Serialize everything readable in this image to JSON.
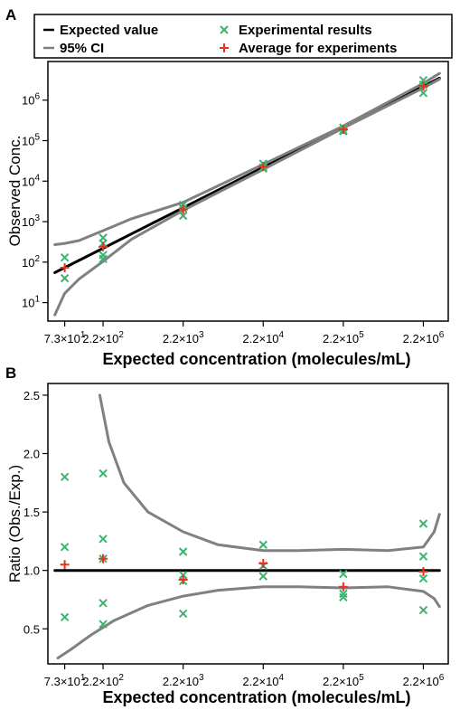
{
  "chart_data": [
    {
      "panel": "A",
      "type": "scatter",
      "xlabel": "Expected concentration (molecules/mL)",
      "ylabel": "Observed Conc.",
      "x_scale": "log",
      "y_scale": "log",
      "x_tick_labels": [
        "7.3×10^1",
        "2.2×10^2",
        "2.2×10^3",
        "2.2×10^4",
        "2.2×10^5",
        "2.2×10^6"
      ],
      "x_ticks": [
        73,
        220,
        2200,
        22000,
        220000,
        2200000
      ],
      "y_tick_labels": [
        "10^1",
        "10^2",
        "10^3",
        "10^4",
        "10^5",
        "10^6"
      ],
      "y_ticks": [
        10,
        100,
        1000,
        10000,
        100000,
        1000000
      ],
      "xlim": [
        45,
        4500000
      ],
      "ylim": [
        3.5,
        9000000
      ],
      "grid": false,
      "legend_position": "top",
      "legend": [
        {
          "label": "Expected value",
          "marker": "line",
          "color": "#000000"
        },
        {
          "label": "95% CI",
          "marker": "line",
          "color": "#808080"
        },
        {
          "label": "Experimental results",
          "marker": "x",
          "color": "#3cb371"
        },
        {
          "label": "Average for experiments",
          "marker": "+",
          "color": "#e8321e"
        }
      ],
      "series": [
        {
          "name": "Expected value",
          "style": "line",
          "x": [
            55,
            3500000
          ],
          "y": [
            55,
            3500000
          ]
        },
        {
          "name": "95% CI",
          "style": "line",
          "x": [
            55,
            73,
            110,
            220,
            500,
            2200,
            22000,
            220000,
            2200000,
            3500000
          ],
          "y": [
            270,
            290,
            340,
            600,
            1180,
            3000,
            26000,
            230000,
            2600000,
            4600000
          ]
        },
        {
          "name": "95% CI",
          "style": "line",
          "x": [
            55,
            73,
            110,
            220,
            500,
            2200,
            22000,
            220000,
            2200000,
            3500000
          ],
          "y": [
            5,
            17,
            38,
            105,
            370,
            1900,
            19500,
            205000,
            2000000,
            3300000
          ]
        },
        {
          "name": "Experimental results",
          "style": "x",
          "x": [
            73,
            73,
            220,
            220,
            220,
            220,
            2200,
            2200,
            2200,
            22000,
            22000,
            22000,
            220000,
            220000,
            220000,
            2200000,
            2200000,
            2200000
          ],
          "y": [
            130,
            40,
            400,
            290,
            150,
            120,
            2600,
            2100,
            1400,
            27000,
            22000,
            20500,
            210000,
            180000,
            170000,
            3100000,
            2400000,
            1500000
          ]
        },
        {
          "name": "Average for experiments",
          "style": "+",
          "x": [
            73,
            220,
            2200,
            22000,
            220000,
            2200000
          ],
          "y": [
            73,
            240,
            2000,
            23000,
            190000,
            2200000
          ]
        }
      ]
    },
    {
      "panel": "B",
      "type": "scatter",
      "xlabel": "Expected concentration (molecules/mL)",
      "ylabel": "Ratio (Obs./Exp.)",
      "x_scale": "log",
      "y_scale": "linear",
      "x_tick_labels": [
        "7.3×10^1",
        "2.2×10^2",
        "2.2×10^3",
        "2.2×10^4",
        "2.2×10^5",
        "2.2×10^6"
      ],
      "x_ticks": [
        73,
        220,
        2200,
        22000,
        220000,
        2200000
      ],
      "y_tick_labels": [
        "0.5",
        "1.0",
        "1.5",
        "2.0",
        "2.5"
      ],
      "y_ticks": [
        0.5,
        1.0,
        1.5,
        2.0,
        2.5
      ],
      "xlim": [
        45,
        4500000
      ],
      "ylim": [
        0.2,
        2.6
      ],
      "grid": false,
      "series": [
        {
          "name": "Expected value",
          "style": "line",
          "x": [
            55,
            3500000
          ],
          "y": [
            1.0,
            1.0
          ]
        },
        {
          "name": "95% CI",
          "style": "line",
          "x": [
            200,
            260,
            400,
            800,
            2200,
            6000,
            22000,
            60000,
            220000,
            800000,
            2200000,
            3000000,
            3500000
          ],
          "y": [
            2.5,
            2.1,
            1.75,
            1.5,
            1.33,
            1.22,
            1.17,
            1.17,
            1.18,
            1.17,
            1.2,
            1.33,
            1.48
          ]
        },
        {
          "name": "95% CI",
          "style": "line",
          "x": [
            60,
            90,
            150,
            300,
            800,
            2200,
            6000,
            22000,
            60000,
            220000,
            800000,
            2200000,
            3000000,
            3500000
          ],
          "y": [
            0.25,
            0.33,
            0.44,
            0.57,
            0.7,
            0.78,
            0.83,
            0.86,
            0.86,
            0.85,
            0.86,
            0.82,
            0.76,
            0.69
          ]
        },
        {
          "name": "Experimental results",
          "style": "x",
          "x": [
            73,
            73,
            73,
            220,
            220,
            220,
            220,
            220,
            2200,
            2200,
            2200,
            2200,
            22000,
            22000,
            22000,
            220000,
            220000,
            220000,
            2200000,
            2200000,
            2200000,
            2200000
          ],
          "y": [
            1.8,
            1.2,
            0.6,
            1.83,
            1.27,
            1.1,
            0.72,
            0.54,
            1.16,
            0.96,
            0.91,
            0.63,
            1.22,
            1.04,
            0.95,
            0.97,
            0.8,
            0.77,
            1.4,
            1.12,
            0.93,
            0.66
          ]
        },
        {
          "name": "Average for experiments",
          "style": "+",
          "x": [
            73,
            220,
            2200,
            22000,
            220000,
            2200000
          ],
          "y": [
            1.05,
            1.1,
            0.92,
            1.06,
            0.86,
            0.99
          ]
        }
      ]
    }
  ],
  "colors": {
    "expected_line": "#000000",
    "ci_line": "#808080",
    "experimental_marker": "#3cb371",
    "average_marker": "#e8321e"
  }
}
